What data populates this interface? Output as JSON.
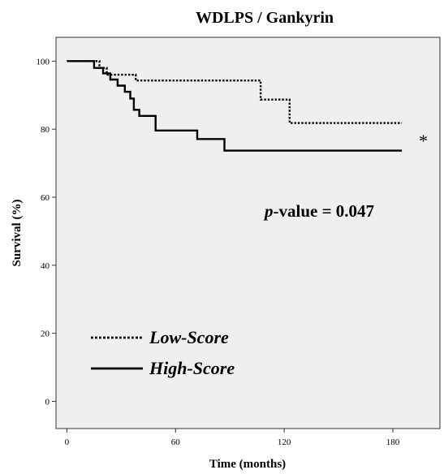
{
  "chart_data": {
    "type": "line",
    "title": "WDLPS / Gankyrin",
    "xlabel": "Time (months)",
    "ylabel": "Survival (%)",
    "xlim": [
      -6,
      206
    ],
    "ylim": [
      -8,
      107
    ],
    "xticks": [
      0,
      60,
      120,
      180
    ],
    "yticks": [
      0,
      20,
      40,
      60,
      80,
      100
    ],
    "x_tick_labels": [
      "0",
      "60",
      "120",
      "180"
    ],
    "y_tick_labels": [
      "0",
      "20",
      "40",
      "60",
      "80",
      "100"
    ],
    "series": [
      {
        "name": "Low-Score",
        "color": "#000000",
        "style": "dotted",
        "x": [
          0,
          18,
          18,
          22,
          22,
          38,
          38,
          107,
          107,
          110,
          110,
          123,
          123,
          185
        ],
        "y": [
          100,
          100,
          98,
          98,
          96,
          96,
          94.3,
          94.3,
          88.7,
          88.7,
          88.7,
          88.7,
          81.8,
          81.8
        ]
      },
      {
        "name": "High-Score",
        "color": "#000000",
        "style": "solid",
        "x": [
          0,
          15,
          15,
          20,
          20,
          24,
          24,
          28,
          28,
          32,
          32,
          35,
          35,
          37,
          37,
          40,
          40,
          49,
          49,
          53,
          53,
          72,
          72,
          87,
          87,
          185
        ],
        "y": [
          100,
          100,
          98,
          98,
          96.4,
          96.4,
          94.6,
          94.6,
          92.8,
          92.8,
          91,
          91,
          89,
          89,
          85.7,
          85.7,
          83.9,
          83.9,
          79.6,
          79.6,
          79.6,
          79.6,
          77.1,
          77.1,
          73.7,
          73.7
        ]
      }
    ],
    "annotations": {
      "p_label": "p",
      "p_value": "-value = 0.047",
      "star": "*"
    },
    "legend_position": "bottom-left",
    "grid": false
  }
}
